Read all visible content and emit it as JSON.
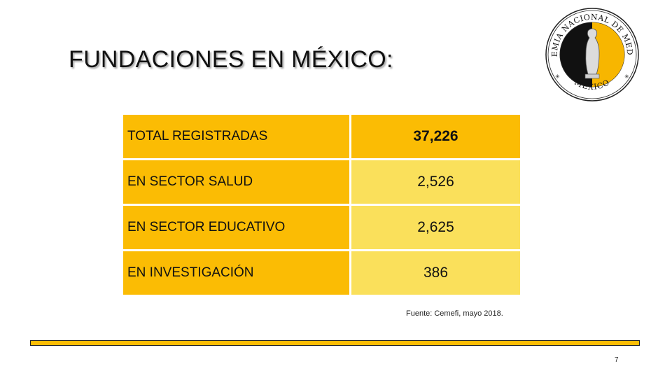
{
  "slide": {
    "title": "FUNDACIONES EN MÉXICO:",
    "source": "Fuente: Cemefi, mayo 2018.",
    "page_number": "7"
  },
  "logo": {
    "name": "Academia Nacional de Medicina",
    "ring_text": "ACADEMIA NACIONAL DE MEDICINA",
    "bottom_text": "MEXICO",
    "colors": {
      "black": "#111111",
      "gold": "#f7b600",
      "ring": "#ffffff"
    }
  },
  "table": {
    "rows": [
      {
        "label": "TOTAL REGISTRADAS",
        "value": "37,226"
      },
      {
        "label": "EN SECTOR SALUD",
        "value": "2,526"
      },
      {
        "label": "EN SECTOR EDUCATIVO",
        "value": "2,625"
      },
      {
        "label": "EN INVESTIGACIÓN",
        "value": "386"
      }
    ]
  },
  "colors": {
    "accent_dark_yellow": "#fbbc04",
    "accent_light_yellow": "#fae05b"
  }
}
